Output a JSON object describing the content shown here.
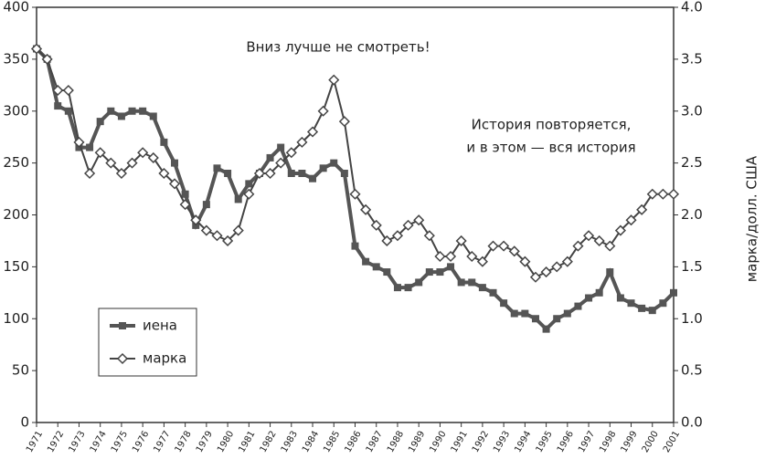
{
  "chart_data": {
    "type": "line",
    "annotations": [
      "Вниз лучше не смотреть!",
      "История повторяется,",
      "и в этом — вся история"
    ],
    "y2label": "марка/долл. США",
    "x": [
      1971.0,
      1971.5,
      1972.0,
      1972.5,
      1973.0,
      1973.5,
      1974.0,
      1974.5,
      1975.0,
      1975.5,
      1976.0,
      1976.5,
      1977.0,
      1977.5,
      1978.0,
      1978.5,
      1979.0,
      1979.5,
      1980.0,
      1980.5,
      1981.0,
      1981.5,
      1982.0,
      1982.5,
      1983.0,
      1983.5,
      1984.0,
      1984.5,
      1985.0,
      1985.5,
      1986.0,
      1986.5,
      1987.0,
      1987.5,
      1988.0,
      1988.5,
      1989.0,
      1989.5,
      1990.0,
      1990.5,
      1991.0,
      1991.5,
      1992.0,
      1992.5,
      1993.0,
      1993.5,
      1994.0,
      1994.5,
      1995.0,
      1995.5,
      1996.0,
      1996.5,
      1997.0,
      1997.5,
      1998.0,
      1998.5,
      1999.0,
      1999.5,
      2000.0,
      2000.5,
      2001.0
    ],
    "series": [
      {
        "name": "иена",
        "color": "#555555",
        "marker": "square",
        "values": [
          360,
          350,
          305,
          300,
          265,
          265,
          290,
          300,
          295,
          300,
          300,
          295,
          270,
          250,
          220,
          190,
          210,
          245,
          240,
          215,
          230,
          240,
          255,
          265,
          240,
          240,
          235,
          245,
          250,
          240,
          170,
          155,
          150,
          145,
          130,
          130,
          135,
          145,
          145,
          150,
          135,
          135,
          130,
          125,
          115,
          105,
          105,
          100,
          90,
          100,
          105,
          112,
          120,
          125,
          145,
          120,
          115,
          110,
          108,
          115,
          125
        ]
      },
      {
        "name": "марка",
        "color": "#444444",
        "marker": "diamond",
        "axis": "y2",
        "values": [
          3.6,
          3.5,
          3.2,
          3.2,
          2.7,
          2.4,
          2.6,
          2.5,
          2.4,
          2.5,
          2.6,
          2.55,
          2.4,
          2.3,
          2.1,
          1.95,
          1.85,
          1.8,
          1.75,
          1.85,
          2.2,
          2.4,
          2.4,
          2.5,
          2.6,
          2.7,
          2.8,
          3.0,
          3.3,
          2.9,
          2.2,
          2.05,
          1.9,
          1.75,
          1.8,
          1.9,
          1.95,
          1.8,
          1.6,
          1.6,
          1.75,
          1.6,
          1.55,
          1.7,
          1.7,
          1.65,
          1.55,
          1.4,
          1.45,
          1.5,
          1.55,
          1.7,
          1.8,
          1.75,
          1.7,
          1.85,
          1.95,
          2.05,
          2.2,
          2.2,
          2.2
        ]
      }
    ],
    "xlim": [
      1971,
      2001
    ],
    "xticks": [
      1971,
      1972,
      1973,
      1974,
      1975,
      1976,
      1977,
      1978,
      1979,
      1980,
      1981,
      1982,
      1983,
      1984,
      1985,
      1986,
      1987,
      1988,
      1989,
      1990,
      1991,
      1992,
      1993,
      1994,
      1995,
      1996,
      1997,
      1998,
      1999,
      2000,
      2001
    ],
    "ylim": [
      0,
      400
    ],
    "yticks": [
      0,
      50,
      100,
      150,
      200,
      250,
      300,
      350,
      400
    ],
    "y2lim": [
      0,
      4
    ],
    "y2ticks": [
      {
        "value": 0,
        "label": "0.0"
      },
      0.5,
      {
        "value": 1,
        "label": "1.0"
      },
      1.5,
      {
        "value": 2,
        "label": "2.0"
      },
      2.5,
      {
        "value": 3,
        "label": "3.0"
      },
      3.5,
      {
        "value": 4,
        "label": "4.0"
      }
    ],
    "legend": "lower left"
  }
}
